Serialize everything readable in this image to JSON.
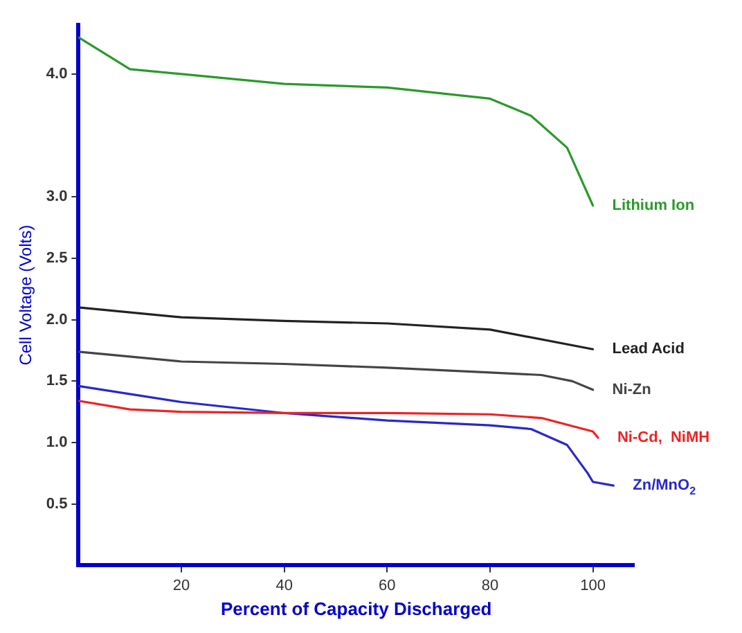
{
  "chart_data": {
    "type": "line",
    "xlabel": "Percent of Capacity Discharged",
    "ylabel": "Cell Voltage (Volts)",
    "xlim": [
      0,
      108
    ],
    "ylim": [
      0,
      4.4
    ],
    "xticks": [
      20,
      40,
      60,
      80,
      100
    ],
    "yticks": [
      {
        "value": 0.5,
        "label": "0.5"
      },
      {
        "value": 1,
        "label": "1.0"
      },
      {
        "value": 1.5,
        "label": "1.5"
      },
      {
        "value": 2,
        "label": "2.0"
      },
      {
        "value": 2.5,
        "label": "2.5"
      },
      {
        "value": 3,
        "label": "3.0"
      },
      {
        "value": 4,
        "label": "4.0"
      }
    ],
    "grid": false,
    "legend": false,
    "marker": "none",
    "line_style": "solid",
    "series": [
      {
        "name": "Lithium Ion",
        "color": "#2a9a2a",
        "x": [
          0,
          10,
          20,
          40,
          60,
          80,
          88,
          95,
          100
        ],
        "values": [
          4.3,
          4.04,
          4.0,
          3.92,
          3.89,
          3.8,
          3.66,
          3.4,
          2.93
        ]
      },
      {
        "name": "Lead Acid",
        "color": "#222222",
        "x": [
          0,
          20,
          40,
          60,
          80,
          100
        ],
        "values": [
          2.1,
          2.02,
          1.99,
          1.97,
          1.92,
          1.76
        ]
      },
      {
        "name": "Ni-Zn",
        "color": "#444444",
        "x": [
          0,
          20,
          40,
          60,
          80,
          90,
          96,
          100
        ],
        "values": [
          1.74,
          1.66,
          1.64,
          1.61,
          1.57,
          1.55,
          1.5,
          1.43
        ]
      },
      {
        "name": "Ni-Cd,  NiMH",
        "color": "#ee2222",
        "x": [
          0,
          10,
          20,
          40,
          60,
          80,
          90,
          100,
          101
        ],
        "values": [
          1.34,
          1.27,
          1.25,
          1.24,
          1.24,
          1.23,
          1.2,
          1.09,
          1.04
        ]
      },
      {
        "name": "Zn/MnO$_{2}$",
        "color": "#2828cc",
        "x": [
          0,
          20,
          40,
          60,
          80,
          88,
          95,
          99,
          100,
          104
        ],
        "values": [
          1.46,
          1.33,
          1.24,
          1.18,
          1.14,
          1.11,
          0.98,
          0.75,
          0.68,
          0.65
        ]
      }
    ]
  }
}
